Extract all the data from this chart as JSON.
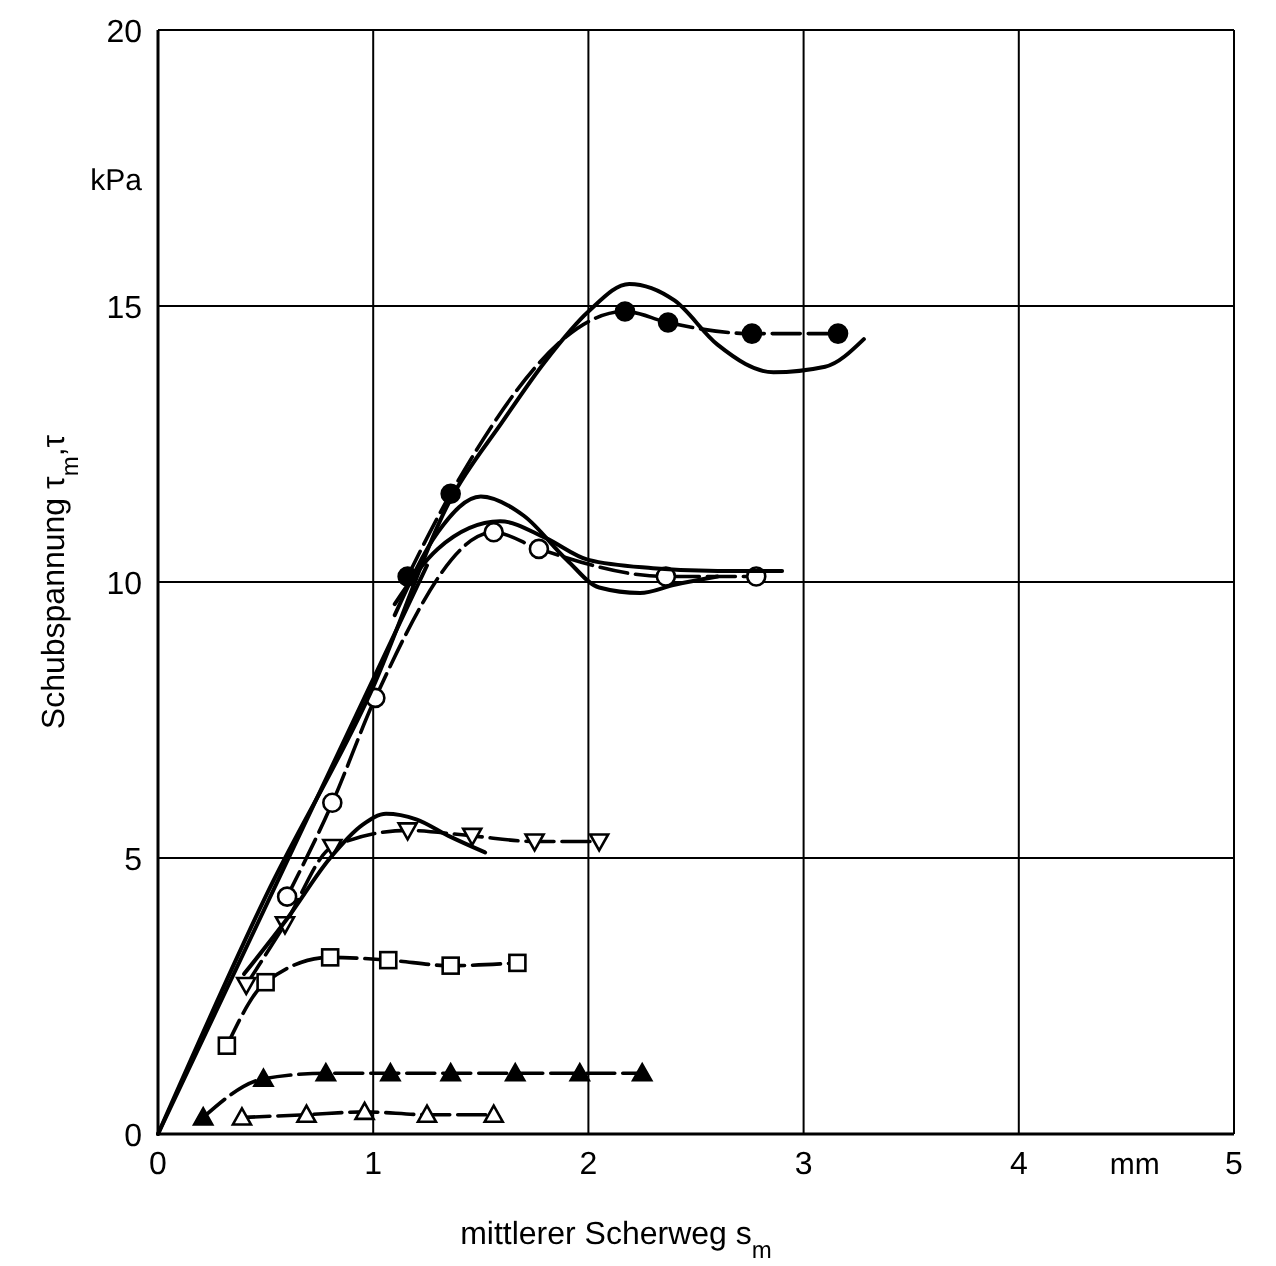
{
  "chart_data": {
    "type": "line",
    "xlabel": "mittlerer Scherweg s$_{m}$",
    "ylabel": "Schubspannung τ$_{m}$,τ",
    "annotations": [
      "kPa",
      "mm"
    ],
    "xlim": [
      0,
      5
    ],
    "ylim": [
      0,
      20
    ],
    "xticks": [
      0,
      1,
      2,
      3,
      4,
      5
    ],
    "yticks": [
      0,
      5,
      10,
      15,
      20
    ],
    "grid": true,
    "line_style": "dashed",
    "series": [
      {
        "color": "#000000",
        "marker": "circle",
        "x": [
          1.16,
          1.36,
          2.17,
          2.37,
          2.76,
          3.16
        ],
        "values": [
          10.1,
          11.6,
          14.9,
          14.7,
          14.5,
          14.5
        ]
      },
      {
        "color": "#000000",
        "marker": "circle-open",
        "x": [
          0.6,
          0.81,
          1.01,
          1.56,
          1.77,
          2.36,
          2.78
        ],
        "values": [
          4.3,
          6.0,
          7.9,
          10.9,
          10.6,
          10.1,
          10.1
        ]
      },
      {
        "color": "#000000",
        "marker": "triangle-down-open",
        "x": [
          0.41,
          0.59,
          0.81,
          1.16,
          1.46,
          1.75,
          2.05
        ],
        "values": [
          2.7,
          3.8,
          5.2,
          5.5,
          5.4,
          5.3,
          5.3
        ]
      },
      {
        "color": "#000000",
        "marker": "square-open",
        "x": [
          0.32,
          0.5,
          0.8,
          1.07,
          1.36,
          1.67
        ],
        "values": [
          1.6,
          2.75,
          3.2,
          3.15,
          3.05,
          3.1
        ]
      },
      {
        "color": "#000000",
        "marker": "triangle",
        "x": [
          0.21,
          0.49,
          0.78,
          1.08,
          1.36,
          1.66,
          1.96,
          2.25
        ],
        "values": [
          0.3,
          1.0,
          1.1,
          1.1,
          1.1,
          1.1,
          1.1,
          1.1
        ]
      },
      {
        "color": "#000000",
        "marker": "triangle-open",
        "x": [
          0.39,
          0.69,
          0.96,
          1.25,
          1.56
        ],
        "values": [
          0.3,
          0.35,
          0.4,
          0.35,
          0.35
        ]
      },
      {
        "color": "#000000",
        "marker": "none",
        "line_style": "solid",
        "x": [
          0,
          0.5,
          1,
          1.36,
          1.6,
          1.8,
          2.0,
          2.19,
          2.4,
          2.6,
          2.86,
          3.1,
          3.28
        ],
        "values": [
          0,
          4.3,
          8.1,
          11.5,
          12.9,
          14.0,
          14.9,
          15.4,
          15.1,
          14.3,
          13.8,
          13.9,
          14.4
        ]
      },
      {
        "color": "#000000",
        "marker": "none",
        "line_style": "solid",
        "x": [
          1.1,
          1.3,
          1.5,
          1.7,
          1.9,
          2.05,
          2.24,
          2.4,
          2.6
        ],
        "values": [
          9.4,
          10.9,
          11.55,
          11.2,
          10.4,
          9.9,
          9.8,
          9.95,
          10.1
        ]
      },
      {
        "color": "#000000",
        "marker": "none",
        "line_style": "solid",
        "x": [
          1.1,
          1.3,
          1.59,
          1.8,
          2.0,
          2.3,
          2.6,
          2.9
        ],
        "values": [
          9.6,
          10.6,
          11.1,
          10.8,
          10.4,
          10.25,
          10.2,
          10.2
        ]
      },
      {
        "color": "#000000",
        "marker": "none",
        "line_style": "solid",
        "x": [
          0.4,
          0.6,
          0.8,
          0.95,
          1.06,
          1.2,
          1.35,
          1.52
        ],
        "values": [
          2.9,
          3.9,
          5.0,
          5.6,
          5.8,
          5.7,
          5.4,
          5.1
        ]
      },
      {
        "color": "#000000",
        "marker": "none",
        "line_style": "solid",
        "x": [
          0,
          1.25
        ],
        "values": [
          0,
          10.3
        ]
      }
    ]
  }
}
